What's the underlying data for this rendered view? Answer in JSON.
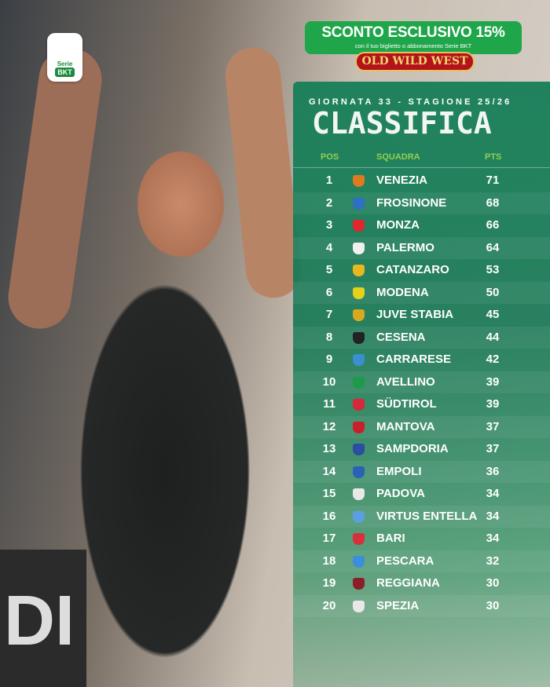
{
  "logo": {
    "top": "Serie",
    "bottom": "BKT"
  },
  "promo": {
    "headline": "SCONTO ESCLUSIVO 15%",
    "subline": "con il tuo biglietto o abbonamento Serie BKT",
    "brand": "OLD WILD WEST"
  },
  "header": {
    "subtitle": "GIORNATA 33 - STAGIONE 25/26",
    "title": "CLASSIFICA"
  },
  "columns": {
    "pos": "POS",
    "team": "SQUADRA",
    "pts": "PTS"
  },
  "background_text": "DI",
  "standings": [
    {
      "pos": "1",
      "team": "VENEZIA",
      "pts": "71",
      "color": "#e07a1f"
    },
    {
      "pos": "2",
      "team": "FROSINONE",
      "pts": "68",
      "color": "#2f6fc4"
    },
    {
      "pos": "3",
      "team": "MONZA",
      "pts": "66",
      "color": "#e0262f"
    },
    {
      "pos": "4",
      "team": "PALERMO",
      "pts": "64",
      "color": "#f0f0f0"
    },
    {
      "pos": "5",
      "team": "CATANZARO",
      "pts": "53",
      "color": "#e6b81e"
    },
    {
      "pos": "6",
      "team": "MODENA",
      "pts": "50",
      "color": "#e4d21a"
    },
    {
      "pos": "7",
      "team": "JUVE STABIA",
      "pts": "45",
      "color": "#d8a81e"
    },
    {
      "pos": "8",
      "team": "CESENA",
      "pts": "44",
      "color": "#222222"
    },
    {
      "pos": "9",
      "team": "CARRARESE",
      "pts": "42",
      "color": "#3a8fd0"
    },
    {
      "pos": "10",
      "team": "AVELLINO",
      "pts": "39",
      "color": "#1e9a4a"
    },
    {
      "pos": "11",
      "team": "SÜDTIROL",
      "pts": "39",
      "color": "#d6283a"
    },
    {
      "pos": "12",
      "team": "MANTOVA",
      "pts": "37",
      "color": "#c8202a"
    },
    {
      "pos": "13",
      "team": "SAMPDORIA",
      "pts": "37",
      "color": "#2a4ea0"
    },
    {
      "pos": "14",
      "team": "EMPOLI",
      "pts": "36",
      "color": "#2a62b8"
    },
    {
      "pos": "15",
      "team": "PADOVA",
      "pts": "34",
      "color": "#e8e8e8"
    },
    {
      "pos": "16",
      "team": "VIRTUS ENTELLA",
      "pts": "34",
      "color": "#5aa0e0"
    },
    {
      "pos": "17",
      "team": "BARI",
      "pts": "34",
      "color": "#d8303a"
    },
    {
      "pos": "18",
      "team": "PESCARA",
      "pts": "32",
      "color": "#3a8fd8"
    },
    {
      "pos": "19",
      "team": "REGGIANA",
      "pts": "30",
      "color": "#8a1f2a"
    },
    {
      "pos": "20",
      "team": "SPEZIA",
      "pts": "30",
      "color": "#e8e8e8"
    }
  ]
}
